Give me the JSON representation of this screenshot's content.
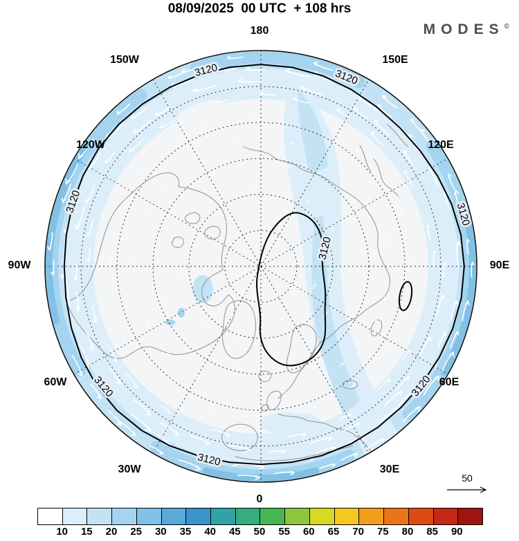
{
  "header": {
    "title": "08/09/2025  00 UTC  + 108 hrs",
    "brand": "MODES",
    "brand_mark": "©"
  },
  "map": {
    "longitude_labels": {
      "deg180": "180",
      "deg150w": "150W",
      "deg150e": "150E",
      "deg120w": "120W",
      "deg120e": "120E",
      "deg90w": "90W",
      "deg90e": "90E",
      "deg60w": "60W",
      "deg60e": "60E",
      "deg30w": "30W",
      "deg30e": "30E",
      "deg0": "0"
    },
    "contour_label": "3120",
    "wind_reference_label": "50",
    "colors": {
      "contour": "#000000",
      "coastline": "#8f8f8f",
      "graticule": "#2a2a2a",
      "arrow": "#ffffff",
      "interior": "#f3f5f6",
      "shade1": "#dceef9",
      "shade2": "#c3e3f5",
      "shade3": "#a4d4ef",
      "shade4": "#81c1e6"
    }
  },
  "colorbar": {
    "tick_labels": [
      "10",
      "15",
      "20",
      "25",
      "30",
      "35",
      "40",
      "45",
      "50",
      "55",
      "60",
      "65",
      "70",
      "75",
      "80",
      "85",
      "90"
    ],
    "colors": [
      "#ffffff",
      "#dbeef9",
      "#c3e3f5",
      "#a4d4ef",
      "#81c1e6",
      "#5aaad9",
      "#3a93cb",
      "#2fa3a8",
      "#35ad7e",
      "#45b653",
      "#8cc63c",
      "#d8d922",
      "#f5c81f",
      "#f29e1c",
      "#ea7418",
      "#de4a16",
      "#c62818",
      "#9e1510"
    ]
  }
}
